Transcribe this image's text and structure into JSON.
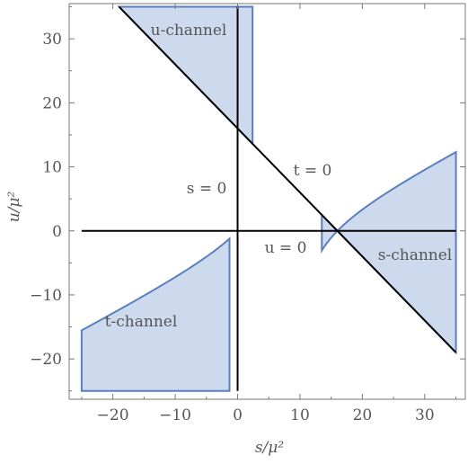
{
  "chart_data": {
    "type": "area",
    "title": "",
    "xlabel": "s/μ²",
    "ylabel": "u/μ²",
    "xlim": [
      -27,
      36.5
    ],
    "ylim": [
      -26.3,
      35.5
    ],
    "x_ticks": [
      -20,
      -10,
      0,
      10,
      20,
      30
    ],
    "y_ticks": [
      -20,
      -10,
      0,
      10,
      20,
      30
    ],
    "x_tick_labels": [
      "−20",
      "−10",
      "0",
      "10",
      "20",
      "30"
    ],
    "y_tick_labels": [
      "−20",
      "−10",
      "0",
      "10",
      "20",
      "30"
    ],
    "grid": false,
    "mu2_total": 16,
    "colors": {
      "fill": "#cdd9ec",
      "edge": "#5b7fbf",
      "lines": "#000000"
    },
    "boundary_lines": [
      {
        "name": "s = 0",
        "x1": 0,
        "y1": -25,
        "x2": 0,
        "y2": 35
      },
      {
        "name": "u = 0",
        "x1": -25,
        "y1": 0,
        "x2": 35,
        "y2": 0
      },
      {
        "name": "t = 0",
        "x1": -19,
        "y1": 35,
        "x2": 35,
        "y2": -19
      }
    ],
    "regions": [
      {
        "name": "s-channel",
        "x_range": [
          13.5,
          35
        ],
        "bounds": "u<=curve, u>=16-s"
      },
      {
        "name": "t-channel",
        "x_range": [
          -25,
          -1.3
        ],
        "bounds": "u<=curve, u>=-25"
      },
      {
        "name": "u-channel",
        "x_range": [
          -19,
          2.4
        ],
        "bounds": "u<=35, u>=max(16-s, curve)"
      }
    ],
    "annotations": [
      {
        "text": "u-channel",
        "x": -7.5,
        "y": 31.5
      },
      {
        "text": "t = 0",
        "x": 12,
        "y": 9.8
      },
      {
        "text": "s = 0",
        "x": -4.7,
        "y": 6.8
      },
      {
        "text": "u = 0",
        "x": 7.8,
        "y": -2.5
      },
      {
        "text": "s-channel",
        "x": 28.5,
        "y": -3.5
      },
      {
        "text": "t-channel",
        "x": -15,
        "y": -13.3
      }
    ]
  },
  "labels": {
    "u_channel": "u-channel",
    "t_zero": "t = 0",
    "s_zero": "s = 0",
    "u_zero": "u = 0",
    "s_channel": "s-channel",
    "t_channel": "t-channel",
    "xlabel": "s/μ²",
    "ylabel": "u/μ²"
  }
}
